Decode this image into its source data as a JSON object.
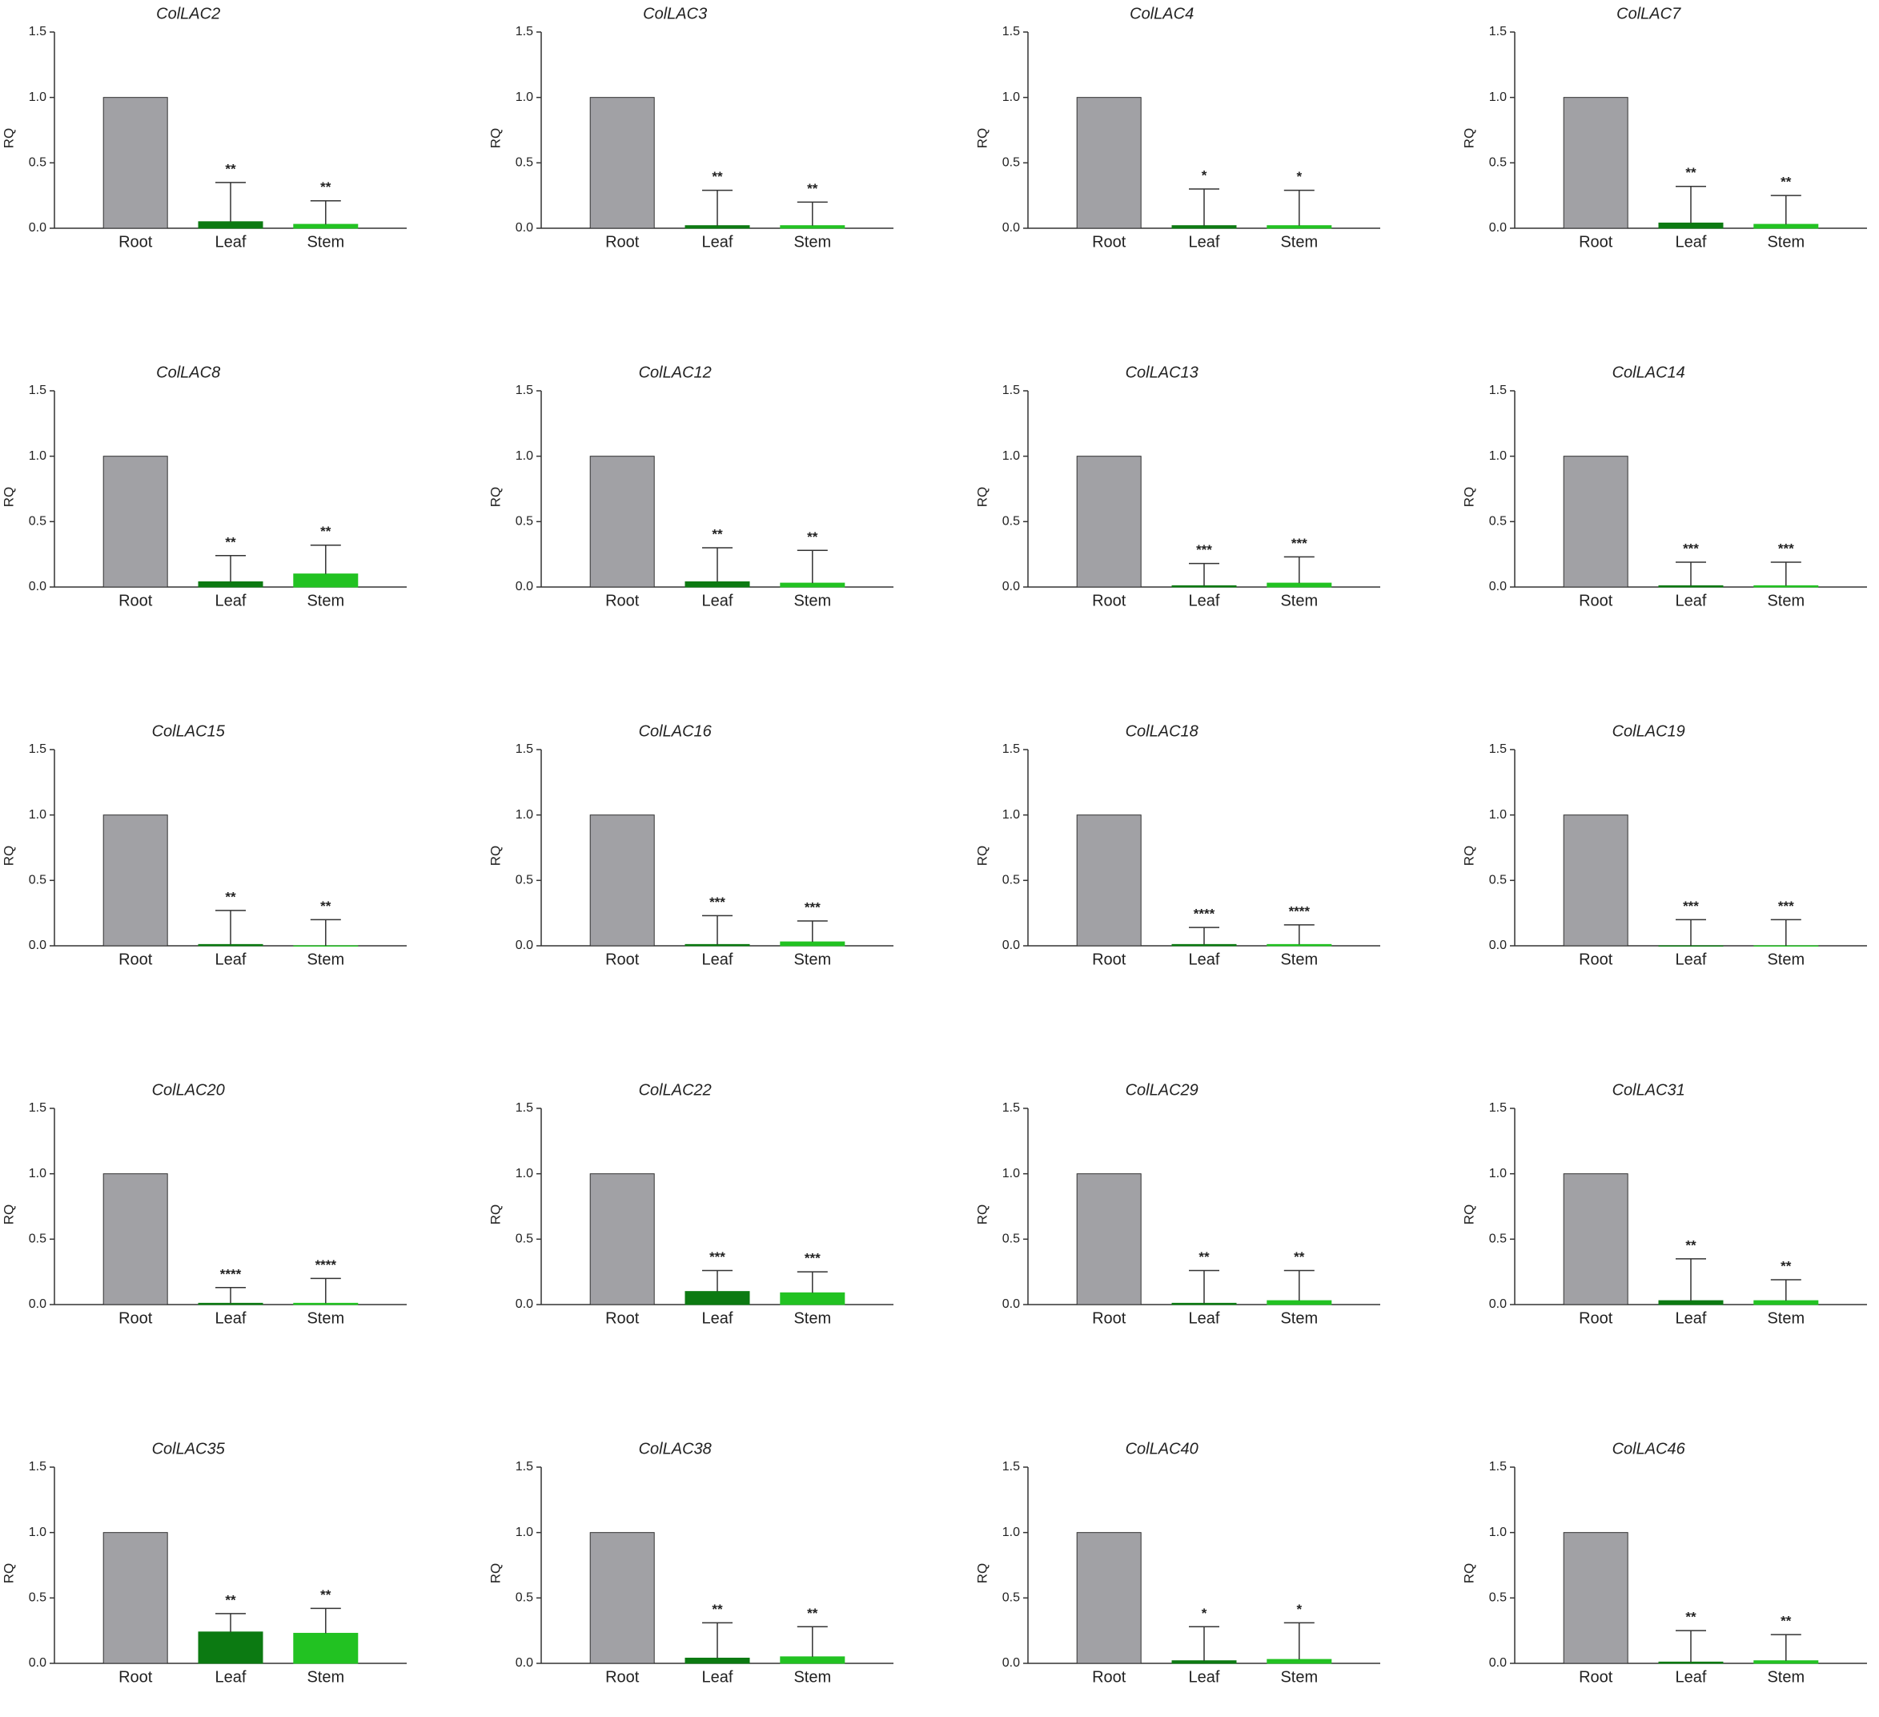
{
  "chart_data": [
    {
      "type": "bar",
      "title": "ColLAC2",
      "ylabel": "RQ",
      "categories": [
        "Root",
        "Leaf",
        "Stem"
      ],
      "values": [
        1,
        0.05,
        0.03
      ],
      "errors": [
        null,
        0.3,
        0.18
      ],
      "annotations": [
        null,
        "**",
        "**"
      ],
      "colors": [
        "#a1a1a5",
        "#0c7a12",
        "#22c222"
      ],
      "ylim": [
        0,
        1.5
      ],
      "yticks": [
        {
          "value": 0,
          "label": "0.0"
        },
        0.5,
        {
          "value": 1,
          "label": "1.0"
        },
        1.5
      ]
    },
    {
      "type": "bar",
      "title": "ColLAC3",
      "ylabel": "RQ",
      "categories": [
        "Root",
        "Leaf",
        "Stem"
      ],
      "values": [
        1,
        0.02,
        0.02
      ],
      "errors": [
        null,
        0.27,
        0.18
      ],
      "annotations": [
        null,
        "**",
        "**"
      ],
      "colors": [
        "#a1a1a5",
        "#0c7a12",
        "#22c222"
      ],
      "ylim": [
        0,
        1.5
      ],
      "yticks": [
        {
          "value": 0,
          "label": "0.0"
        },
        0.5,
        {
          "value": 1,
          "label": "1.0"
        },
        1.5
      ]
    },
    {
      "type": "bar",
      "title": "ColLAC4",
      "ylabel": "RQ",
      "categories": [
        "Root",
        "Leaf",
        "Stem"
      ],
      "values": [
        1,
        0.02,
        0.02
      ],
      "errors": [
        null,
        0.28,
        0.27
      ],
      "annotations": [
        null,
        "*",
        "*"
      ],
      "colors": [
        "#a1a1a5",
        "#0c7a12",
        "#22c222"
      ],
      "ylim": [
        0,
        1.5
      ],
      "yticks": [
        {
          "value": 0,
          "label": "0.0"
        },
        0.5,
        {
          "value": 1,
          "label": "1.0"
        },
        1.5
      ]
    },
    {
      "type": "bar",
      "title": "ColLAC7",
      "ylabel": "RQ",
      "categories": [
        "Root",
        "Leaf",
        "Stem"
      ],
      "values": [
        1,
        0.04,
        0.03
      ],
      "errors": [
        null,
        0.28,
        0.22
      ],
      "annotations": [
        null,
        "**",
        "**"
      ],
      "colors": [
        "#a1a1a5",
        "#0c7a12",
        "#22c222"
      ],
      "ylim": [
        0,
        1.5
      ],
      "yticks": [
        {
          "value": 0,
          "label": "0.0"
        },
        0.5,
        {
          "value": 1,
          "label": "1.0"
        },
        1.5
      ]
    },
    {
      "type": "bar",
      "title": "ColLAC8",
      "ylabel": "RQ",
      "categories": [
        "Root",
        "Leaf",
        "Stem"
      ],
      "values": [
        1,
        0.04,
        0.1
      ],
      "errors": [
        null,
        0.2,
        0.22
      ],
      "annotations": [
        null,
        "**",
        "**"
      ],
      "colors": [
        "#a1a1a5",
        "#0c7a12",
        "#22c222"
      ],
      "ylim": [
        0,
        1.5
      ],
      "yticks": [
        {
          "value": 0,
          "label": "0.0"
        },
        0.5,
        {
          "value": 1,
          "label": "1.0"
        },
        1.5
      ]
    },
    {
      "type": "bar",
      "title": "ColLAC12",
      "ylabel": "RQ",
      "categories": [
        "Root",
        "Leaf",
        "Stem"
      ],
      "values": [
        1,
        0.04,
        0.03
      ],
      "errors": [
        null,
        0.26,
        0.25
      ],
      "annotations": [
        null,
        "**",
        "**"
      ],
      "colors": [
        "#a1a1a5",
        "#0c7a12",
        "#22c222"
      ],
      "ylim": [
        0,
        1.5
      ],
      "yticks": [
        {
          "value": 0,
          "label": "0.0"
        },
        0.5,
        {
          "value": 1,
          "label": "1.0"
        },
        1.5
      ]
    },
    {
      "type": "bar",
      "title": "ColLAC13",
      "ylabel": "RQ",
      "categories": [
        "Root",
        "Leaf",
        "Stem"
      ],
      "values": [
        1,
        0.01,
        0.03
      ],
      "errors": [
        null,
        0.17,
        0.2
      ],
      "annotations": [
        null,
        "***",
        "***"
      ],
      "colors": [
        "#a1a1a5",
        "#0c7a12",
        "#22c222"
      ],
      "ylim": [
        0,
        1.5
      ],
      "yticks": [
        {
          "value": 0,
          "label": "0.0"
        },
        0.5,
        {
          "value": 1,
          "label": "1.0"
        },
        1.5
      ]
    },
    {
      "type": "bar",
      "title": "ColLAC14",
      "ylabel": "RQ",
      "categories": [
        "Root",
        "Leaf",
        "Stem"
      ],
      "values": [
        1,
        0.01,
        0.01
      ],
      "errors": [
        null,
        0.18,
        0.18
      ],
      "annotations": [
        null,
        "***",
        "***"
      ],
      "colors": [
        "#a1a1a5",
        "#0c7a12",
        "#22c222"
      ],
      "ylim": [
        0,
        1.5
      ],
      "yticks": [
        {
          "value": 0,
          "label": "0.0"
        },
        0.5,
        {
          "value": 1,
          "label": "1.0"
        },
        1.5
      ]
    },
    {
      "type": "bar",
      "title": "ColLAC15",
      "ylabel": "RQ",
      "categories": [
        "Root",
        "Leaf",
        "Stem"
      ],
      "values": [
        1,
        0.01,
        0
      ],
      "errors": [
        null,
        0.26,
        0.2
      ],
      "annotations": [
        null,
        "**",
        "**"
      ],
      "colors": [
        "#a1a1a5",
        "#0c7a12",
        "#22c222"
      ],
      "ylim": [
        0,
        1.5
      ],
      "yticks": [
        {
          "value": 0,
          "label": "0.0"
        },
        0.5,
        {
          "value": 1,
          "label": "1.0"
        },
        1.5
      ]
    },
    {
      "type": "bar",
      "title": "ColLAC16",
      "ylabel": "RQ",
      "categories": [
        "Root",
        "Leaf",
        "Stem"
      ],
      "values": [
        1,
        0.01,
        0.03
      ],
      "errors": [
        null,
        0.22,
        0.16
      ],
      "annotations": [
        null,
        "***",
        "***"
      ],
      "colors": [
        "#a1a1a5",
        "#0c7a12",
        "#22c222"
      ],
      "ylim": [
        0,
        1.5
      ],
      "yticks": [
        {
          "value": 0,
          "label": "0.0"
        },
        0.5,
        {
          "value": 1,
          "label": "1.0"
        },
        1.5
      ]
    },
    {
      "type": "bar",
      "title": "ColLAC18",
      "ylabel": "RQ",
      "categories": [
        "Root",
        "Leaf",
        "Stem"
      ],
      "values": [
        1,
        0.01,
        0.01
      ],
      "errors": [
        null,
        0.13,
        0.15
      ],
      "annotations": [
        null,
        "****",
        "****"
      ],
      "colors": [
        "#a1a1a5",
        "#0c7a12",
        "#22c222"
      ],
      "ylim": [
        0,
        1.5
      ],
      "yticks": [
        {
          "value": 0,
          "label": "0.0"
        },
        0.5,
        {
          "value": 1,
          "label": "1.0"
        },
        1.5
      ]
    },
    {
      "type": "bar",
      "title": "ColLAC19",
      "ylabel": "RQ",
      "categories": [
        "Root",
        "Leaf",
        "Stem"
      ],
      "values": [
        1,
        0,
        0
      ],
      "errors": [
        null,
        0.2,
        0.2
      ],
      "annotations": [
        null,
        "***",
        "***"
      ],
      "colors": [
        "#a1a1a5",
        "#0c7a12",
        "#22c222"
      ],
      "ylim": [
        0,
        1.5
      ],
      "yticks": [
        {
          "value": 0,
          "label": "0.0"
        },
        0.5,
        {
          "value": 1,
          "label": "1.0"
        },
        1.5
      ]
    },
    {
      "type": "bar",
      "title": "ColLAC20",
      "ylabel": "RQ",
      "categories": [
        "Root",
        "Leaf",
        "Stem"
      ],
      "values": [
        1,
        0.01,
        0.01
      ],
      "errors": [
        null,
        0.12,
        0.19
      ],
      "annotations": [
        null,
        "****",
        "****"
      ],
      "colors": [
        "#a1a1a5",
        "#0c7a12",
        "#22c222"
      ],
      "ylim": [
        0,
        1.5
      ],
      "yticks": [
        {
          "value": 0,
          "label": "0.0"
        },
        0.5,
        {
          "value": 1,
          "label": "1.0"
        },
        1.5
      ]
    },
    {
      "type": "bar",
      "title": "ColLAC22",
      "ylabel": "RQ",
      "categories": [
        "Root",
        "Leaf",
        "Stem"
      ],
      "values": [
        1,
        0.1,
        0.09
      ],
      "errors": [
        null,
        0.16,
        0.16
      ],
      "annotations": [
        null,
        "***",
        "***"
      ],
      "colors": [
        "#a1a1a5",
        "#0c7a12",
        "#22c222"
      ],
      "ylim": [
        0,
        1.5
      ],
      "yticks": [
        {
          "value": 0,
          "label": "0.0"
        },
        0.5,
        {
          "value": 1,
          "label": "1.0"
        },
        1.5
      ]
    },
    {
      "type": "bar",
      "title": "ColLAC29",
      "ylabel": "RQ",
      "categories": [
        "Root",
        "Leaf",
        "Stem"
      ],
      "values": [
        1,
        0.01,
        0.03
      ],
      "errors": [
        null,
        0.25,
        0.23
      ],
      "annotations": [
        null,
        "**",
        "**"
      ],
      "colors": [
        "#a1a1a5",
        "#0c7a12",
        "#22c222"
      ],
      "ylim": [
        0,
        1.5
      ],
      "yticks": [
        {
          "value": 0,
          "label": "0.0"
        },
        0.5,
        {
          "value": 1,
          "label": "1.0"
        },
        1.5
      ]
    },
    {
      "type": "bar",
      "title": "ColLAC31",
      "ylabel": "RQ",
      "categories": [
        "Root",
        "Leaf",
        "Stem"
      ],
      "values": [
        1,
        0.03,
        0.03
      ],
      "errors": [
        null,
        0.32,
        0.16
      ],
      "annotations": [
        null,
        "**",
        "**"
      ],
      "colors": [
        "#a1a1a5",
        "#0c7a12",
        "#22c222"
      ],
      "ylim": [
        0,
        1.5
      ],
      "yticks": [
        {
          "value": 0,
          "label": "0.0"
        },
        0.5,
        {
          "value": 1,
          "label": "1.0"
        },
        1.5
      ]
    },
    {
      "type": "bar",
      "title": "ColLAC35",
      "ylabel": "RQ",
      "categories": [
        "Root",
        "Leaf",
        "Stem"
      ],
      "values": [
        1,
        0.24,
        0.23
      ],
      "errors": [
        null,
        0.14,
        0.19
      ],
      "annotations": [
        null,
        "**",
        "**"
      ],
      "colors": [
        "#a1a1a5",
        "#0c7a12",
        "#22c222"
      ],
      "ylim": [
        0,
        1.5
      ],
      "yticks": [
        {
          "value": 0,
          "label": "0.0"
        },
        0.5,
        {
          "value": 1,
          "label": "1.0"
        },
        1.5
      ]
    },
    {
      "type": "bar",
      "title": "ColLAC38",
      "ylabel": "RQ",
      "categories": [
        "Root",
        "Leaf",
        "Stem"
      ],
      "values": [
        1,
        0.04,
        0.05
      ],
      "errors": [
        null,
        0.27,
        0.23
      ],
      "annotations": [
        null,
        "**",
        "**"
      ],
      "colors": [
        "#a1a1a5",
        "#0c7a12",
        "#22c222"
      ],
      "ylim": [
        0,
        1.5
      ],
      "yticks": [
        {
          "value": 0,
          "label": "0.0"
        },
        0.5,
        {
          "value": 1,
          "label": "1.0"
        },
        1.5
      ]
    },
    {
      "type": "bar",
      "title": "ColLAC40",
      "ylabel": "RQ",
      "categories": [
        "Root",
        "Leaf",
        "Stem"
      ],
      "values": [
        1,
        0.02,
        0.03
      ],
      "errors": [
        null,
        0.26,
        0.28
      ],
      "annotations": [
        null,
        "*",
        "*"
      ],
      "colors": [
        "#a1a1a5",
        "#0c7a12",
        "#22c222"
      ],
      "ylim": [
        0,
        1.5
      ],
      "yticks": [
        {
          "value": 0,
          "label": "0.0"
        },
        0.5,
        {
          "value": 1,
          "label": "1.0"
        },
        1.5
      ]
    },
    {
      "type": "bar",
      "title": "ColLAC46",
      "ylabel": "RQ",
      "categories": [
        "Root",
        "Leaf",
        "Stem"
      ],
      "values": [
        1,
        0.01,
        0.02
      ],
      "errors": [
        null,
        0.24,
        0.2
      ],
      "annotations": [
        null,
        "**",
        "**"
      ],
      "colors": [
        "#a1a1a5",
        "#0c7a12",
        "#22c222"
      ],
      "ylim": [
        0,
        1.5
      ],
      "yticks": [
        {
          "value": 0,
          "label": "0.0"
        },
        0.5,
        {
          "value": 1,
          "label": "1.0"
        },
        1.5
      ]
    }
  ]
}
